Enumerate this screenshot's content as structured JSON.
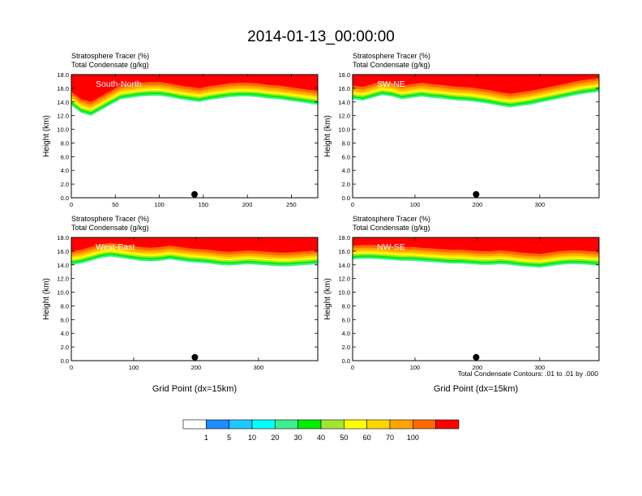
{
  "title": "2014-01-13_00:00:00",
  "colorbar": {
    "colors": [
      "#ffffff",
      "#1e8cff",
      "#1ec8ff",
      "#00ffff",
      "#3cf08c",
      "#00ee00",
      "#a0e632",
      "#ffff00",
      "#ffd700",
      "#ffa500",
      "#ff6a00",
      "#ff0000"
    ],
    "labels": [
      "1",
      "5",
      "10",
      "20",
      "30",
      "40",
      "50",
      "60",
      "70",
      "100"
    ]
  },
  "contour_note": "Total Condensate Contours: .01 to .01 by .000",
  "chart_data": [
    {
      "type": "heatmap",
      "label": "South-North",
      "title_lines": [
        "Stratosphere Tracer   (%)",
        "Total Condensate   (g/kg)"
      ],
      "ylabel": "Height (km)",
      "xlabel": "",
      "xlim": [
        0,
        280
      ],
      "ylim": [
        0,
        18
      ],
      "xticks": [
        0,
        50,
        100,
        150,
        200,
        250
      ],
      "yticks": [
        "0.0",
        "2.0",
        "4.0",
        "6.0",
        "8.0",
        "10.0",
        "12.0",
        "14.0",
        "16.0",
        "18.0"
      ],
      "marker_x": 140,
      "tracer_base_km": [
        13.5,
        12.4,
        12.0,
        12.8,
        13.6,
        14.4,
        14.6,
        14.8,
        14.9,
        14.9,
        14.7,
        14.4,
        14.2,
        14.0,
        14.3,
        14.5,
        14.7,
        14.8,
        14.8,
        14.7,
        14.5,
        14.4,
        14.2,
        14.0,
        13.8,
        13.6
      ]
    },
    {
      "type": "heatmap",
      "label": "SW-NE",
      "title_lines": [
        "Stratosphere Tracer   (%)",
        "Total Condensate   (g/kg)"
      ],
      "ylabel": "Height (km)",
      "xlabel": "",
      "xlim": [
        0,
        395
      ],
      "ylim": [
        0,
        18
      ],
      "xticks": [
        0,
        100,
        200,
        300
      ],
      "yticks": [
        "0.0",
        "2.0",
        "4.0",
        "6.0",
        "8.0",
        "10.0",
        "12.0",
        "14.0",
        "16.0",
        "18.0"
      ],
      "marker_x": 198,
      "tracer_base_km": [
        14.4,
        14.2,
        14.6,
        15.0,
        14.8,
        14.4,
        14.6,
        14.8,
        14.6,
        14.5,
        14.3,
        14.2,
        14.1,
        13.9,
        13.7,
        13.4,
        13.2,
        13.4,
        13.6,
        13.9,
        14.2,
        14.5,
        14.8,
        15.1,
        15.3,
        15.5
      ]
    },
    {
      "type": "heatmap",
      "label": "West-East",
      "title_lines": [
        "Stratosphere Tracer   (%)",
        "Total Condensate   (g/kg)"
      ],
      "ylabel": "Height (km)",
      "xlabel": "Grid Point (dx=15km)",
      "xlim": [
        0,
        395
      ],
      "ylim": [
        0,
        18
      ],
      "xticks": [
        0,
        100,
        200,
        300
      ],
      "yticks": [
        "0.0",
        "2.0",
        "4.0",
        "6.0",
        "8.0",
        "10.0",
        "12.0",
        "14.0",
        "16.0",
        "18.0"
      ],
      "marker_x": 198,
      "tracer_base_km": [
        14.0,
        14.2,
        14.6,
        15.0,
        15.2,
        15.0,
        14.8,
        14.6,
        14.5,
        14.6,
        14.8,
        14.6,
        14.4,
        14.3,
        14.2,
        14.0,
        13.9,
        14.0,
        14.1,
        14.0,
        13.9,
        13.8,
        13.8,
        13.9,
        14.0,
        14.1
      ]
    },
    {
      "type": "heatmap",
      "label": "NW-SE",
      "title_lines": [
        "Stratosphere Tracer   (%)",
        "Total Condensate   (g/kg)"
      ],
      "ylabel": "Height (km)",
      "xlabel": "Grid Point (dx=15km)",
      "xlim": [
        0,
        395
      ],
      "ylim": [
        0,
        18
      ],
      "xticks": [
        0,
        100,
        200,
        300
      ],
      "yticks": [
        "0.0",
        "2.0",
        "4.0",
        "6.0",
        "8.0",
        "10.0",
        "12.0",
        "14.0",
        "16.0",
        "18.0"
      ],
      "marker_x": 198,
      "tracer_base_km": [
        14.8,
        14.9,
        14.9,
        14.8,
        14.7,
        14.6,
        14.6,
        14.5,
        14.4,
        14.3,
        14.2,
        14.2,
        14.1,
        14.0,
        14.0,
        14.1,
        14.0,
        13.8,
        13.7,
        13.6,
        13.8,
        14.0,
        14.1,
        14.1,
        14.0,
        13.9
      ]
    }
  ]
}
